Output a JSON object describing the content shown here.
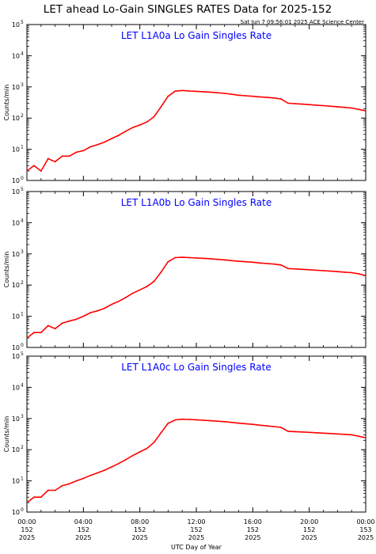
{
  "title": "LET ahead Lo-Gain SINGLES RATES Data for 2025-152",
  "timestamp": "Sat Jun  7 09:56:01 2025 ACE Science Center",
  "x_axis_label": "UTC Day of Year",
  "x_ticks": [
    {
      "h": 0,
      "time": "00:00",
      "doy": "152",
      "year": "2025"
    },
    {
      "h": 4,
      "time": "04:00",
      "doy": "152",
      "year": "2025"
    },
    {
      "h": 8,
      "time": "08:00",
      "doy": "152",
      "year": "2025"
    },
    {
      "h": 12,
      "time": "12:00",
      "doy": "152",
      "year": "2025"
    },
    {
      "h": 16,
      "time": "16:00",
      "doy": "152",
      "year": "2025"
    },
    {
      "h": 20,
      "time": "20:00",
      "doy": "152",
      "year": "2025"
    },
    {
      "h": 24,
      "time": "00:00",
      "doy": "153",
      "year": "2025"
    }
  ],
  "colors": {
    "series": "#ff0000",
    "panel_title": "#0000ff",
    "axes": "#000000"
  },
  "chart_data": [
    {
      "type": "line",
      "title": "LET L1A0a Lo Gain Singles Rate",
      "ylabel": "Counts/min",
      "yscale": "log",
      "ylim": [
        1,
        100000
      ],
      "xlim": [
        0,
        24
      ],
      "y_ticks": [
        {
          "base": "10",
          "exp": "0"
        },
        {
          "base": "10",
          "exp": "1"
        },
        {
          "base": "10",
          "exp": "2"
        },
        {
          "base": "10",
          "exp": "3"
        },
        {
          "base": "10",
          "exp": "4"
        },
        {
          "base": "10",
          "exp": "5"
        }
      ],
      "series": [
        {
          "color": "#ff0000",
          "x": [
            0,
            0.5,
            1,
            1.5,
            2,
            2.5,
            3,
            3.5,
            4,
            4.5,
            5,
            5.5,
            6,
            6.5,
            7,
            7.5,
            8,
            8.5,
            9,
            9.5,
            10,
            10.5,
            11,
            11.5,
            12,
            12.5,
            13,
            13.5,
            14,
            14.5,
            15,
            15.5,
            16,
            16.5,
            17,
            17.5,
            18,
            18.5,
            19,
            19.5,
            20,
            20.5,
            21,
            21.5,
            22,
            22.5,
            23,
            23.5,
            24
          ],
          "y": [
            2,
            3,
            2,
            5,
            4,
            6,
            6,
            8,
            9,
            12,
            14,
            17,
            22,
            28,
            38,
            50,
            60,
            75,
            110,
            230,
            500,
            730,
            770,
            740,
            720,
            700,
            680,
            650,
            620,
            580,
            540,
            520,
            500,
            480,
            460,
            440,
            410,
            300,
            290,
            280,
            270,
            260,
            250,
            240,
            230,
            220,
            210,
            190,
            170
          ]
        }
      ]
    },
    {
      "type": "line",
      "title": "LET L1A0b Lo Gain Singles Rate",
      "ylabel": "Counts/min",
      "yscale": "log",
      "ylim": [
        1,
        100000
      ],
      "xlim": [
        0,
        24
      ],
      "y_ticks": [
        {
          "base": "10",
          "exp": "0"
        },
        {
          "base": "10",
          "exp": "1"
        },
        {
          "base": "10",
          "exp": "2"
        },
        {
          "base": "10",
          "exp": "3"
        },
        {
          "base": "10",
          "exp": "4"
        },
        {
          "base": "10",
          "exp": "5"
        }
      ],
      "series": [
        {
          "color": "#ff0000",
          "x": [
            0,
            0.5,
            1,
            1.5,
            2,
            2.5,
            3,
            3.5,
            4,
            4.5,
            5,
            5.5,
            6,
            6.5,
            7,
            7.5,
            8,
            8.5,
            9,
            9.5,
            10,
            10.5,
            11,
            11.5,
            12,
            12.5,
            13,
            13.5,
            14,
            14.5,
            15,
            15.5,
            16,
            16.5,
            17,
            17.5,
            18,
            18.5,
            19,
            19.5,
            20,
            20.5,
            21,
            21.5,
            22,
            22.5,
            23,
            23.5,
            24
          ],
          "y": [
            2,
            3,
            3,
            5,
            4,
            6,
            7,
            8,
            10,
            13,
            15,
            18,
            24,
            30,
            40,
            55,
            70,
            90,
            130,
            260,
            560,
            760,
            780,
            760,
            740,
            720,
            700,
            670,
            640,
            610,
            580,
            560,
            540,
            510,
            490,
            470,
            440,
            340,
            330,
            320,
            310,
            300,
            290,
            280,
            270,
            260,
            250,
            230,
            200
          ]
        }
      ]
    },
    {
      "type": "line",
      "title": "LET L1A0c Lo Gain Singles Rate",
      "ylabel": "Counts/min",
      "yscale": "log",
      "ylim": [
        1,
        100000
      ],
      "xlim": [
        0,
        24
      ],
      "y_ticks": [
        {
          "base": "10",
          "exp": "0"
        },
        {
          "base": "10",
          "exp": "1"
        },
        {
          "base": "10",
          "exp": "2"
        },
        {
          "base": "10",
          "exp": "3"
        },
        {
          "base": "10",
          "exp": "4"
        },
        {
          "base": "10",
          "exp": "5"
        }
      ],
      "series": [
        {
          "color": "#ff0000",
          "x": [
            0,
            0.5,
            1,
            1.5,
            2,
            2.5,
            3,
            3.5,
            4,
            4.5,
            5,
            5.5,
            6,
            6.5,
            7,
            7.5,
            8,
            8.5,
            9,
            9.5,
            10,
            10.5,
            11,
            11.5,
            12,
            12.5,
            13,
            13.5,
            14,
            14.5,
            15,
            15.5,
            16,
            16.5,
            17,
            17.5,
            18,
            18.5,
            19,
            19.5,
            20,
            20.5,
            21,
            21.5,
            22,
            22.5,
            23,
            23.5,
            24
          ],
          "y": [
            2,
            3,
            3,
            5,
            5,
            7,
            8,
            10,
            12,
            15,
            18,
            22,
            28,
            36,
            48,
            65,
            85,
            110,
            170,
            350,
            700,
            900,
            950,
            930,
            910,
            880,
            850,
            820,
            790,
            750,
            710,
            680,
            650,
            610,
            580,
            550,
            520,
            390,
            380,
            370,
            360,
            350,
            340,
            330,
            320,
            310,
            300,
            270,
            240
          ]
        }
      ]
    }
  ]
}
